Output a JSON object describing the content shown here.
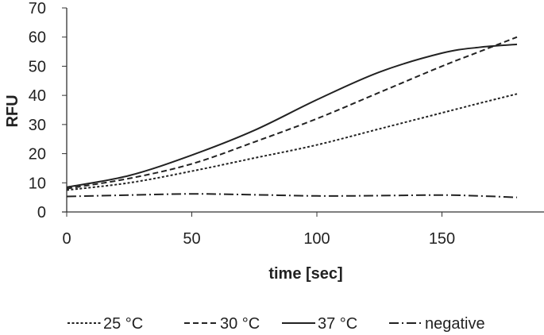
{
  "chart_data": {
    "type": "line",
    "title": "",
    "xlabel": "time [sec]",
    "ylabel": "RFU",
    "xlim": [
      0,
      180
    ],
    "ylim": [
      0,
      70
    ],
    "xticks": [
      0,
      50,
      100,
      150
    ],
    "yticks": [
      0,
      10,
      20,
      30,
      40,
      50,
      60,
      70
    ],
    "grid": false,
    "legend": "bottom",
    "x": [
      0,
      25,
      50,
      75,
      100,
      125,
      150,
      165,
      180
    ],
    "series": [
      {
        "name": "25 °C",
        "dash": "dotted",
        "values": [
          7.5,
          10,
          14,
          18.5,
          23,
          28.5,
          34,
          37.3,
          40.5
        ]
      },
      {
        "name": "30 °C",
        "dash": "dashed",
        "values": [
          8,
          11.5,
          16.5,
          24,
          32,
          41,
          50,
          55,
          60
        ]
      },
      {
        "name": "37 °C",
        "dash": "solid",
        "values": [
          8.5,
          12.5,
          19.5,
          28,
          38.5,
          48,
          54.5,
          56.5,
          57.5
        ]
      },
      {
        "name": "negative",
        "dash": "dashdot",
        "values": [
          5.3,
          5.8,
          6.2,
          5.9,
          5.5,
          5.6,
          5.8,
          5.5,
          5
        ]
      }
    ]
  }
}
